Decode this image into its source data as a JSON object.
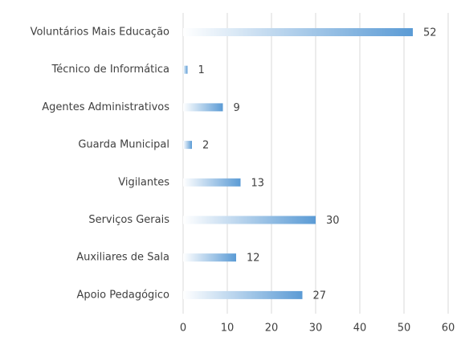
{
  "chart_data": {
    "type": "bar",
    "orientation": "horizontal",
    "categories": [
      "Voluntários Mais Educação",
      "Técnico de Informática",
      "Agentes Administrativos",
      "Guarda Municipal",
      "Vigilantes",
      "Serviços Gerais",
      "Auxiliares de Sala",
      "Apoio Pedagógico"
    ],
    "values": [
      52,
      1,
      9,
      2,
      13,
      30,
      12,
      27
    ],
    "color": "#5b9bd5",
    "xlim": [
      0,
      60
    ],
    "xticks": [
      0,
      10,
      20,
      30,
      40,
      50,
      60
    ],
    "grid": true
  }
}
